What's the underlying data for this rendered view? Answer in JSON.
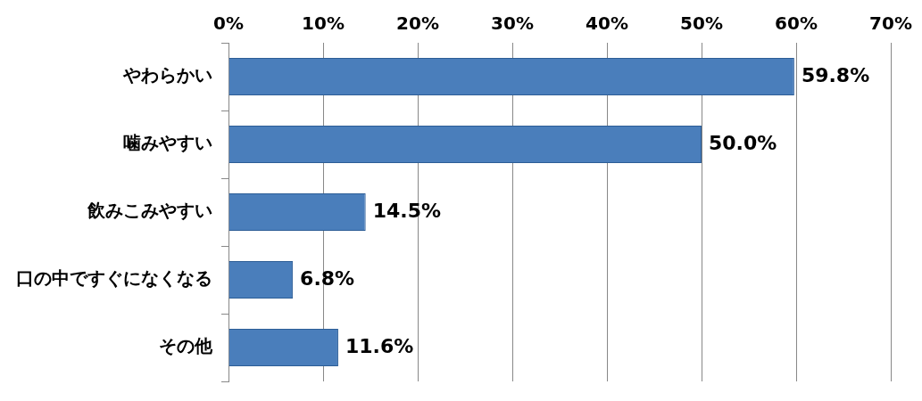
{
  "chart_data": {
    "type": "bar",
    "orientation": "horizontal",
    "categories": [
      "やわらかい",
      "噛みやすい",
      "飲みこみやすい",
      "口の中ですぐになくなる",
      "その他"
    ],
    "values": [
      59.8,
      50.0,
      14.5,
      6.8,
      11.6
    ],
    "color": "#4a7ebb",
    "value_labels": [
      "59.8%",
      "50.0%",
      "14.5%",
      "6.8%",
      "11.6%"
    ],
    "xlim": [
      0,
      70
    ],
    "xticks": [
      {
        "value": 0,
        "label": "0%"
      },
      {
        "value": 10,
        "label": "10%"
      },
      {
        "value": 20,
        "label": "20%"
      },
      {
        "value": 30,
        "label": "30%"
      },
      {
        "value": 40,
        "label": "40%"
      },
      {
        "value": 50,
        "label": "50%"
      },
      {
        "value": 60,
        "label": "60%"
      },
      {
        "value": 70,
        "label": "70%"
      }
    ],
    "grid": "x",
    "legend": false
  }
}
